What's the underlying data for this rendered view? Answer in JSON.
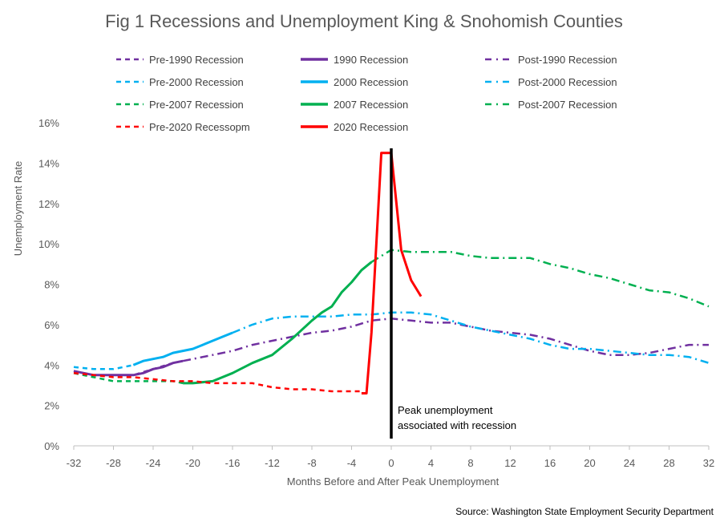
{
  "chart_data": {
    "type": "line",
    "title": "Fig 1 Recessions and Unemployment King & Snohomish Counties",
    "xlabel": "Months Before and After Peak Unemployment",
    "ylabel": "Unemployment Rate",
    "xlim": [
      -32,
      32
    ],
    "ylim": [
      0,
      16
    ],
    "x_ticks": [
      "-32",
      "-28",
      "-24",
      "-20",
      "-16",
      "-12",
      "-8",
      "-4",
      "0",
      "4",
      "8",
      "12",
      "16",
      "20",
      "24",
      "28",
      "32"
    ],
    "y_ticks": [
      "0%",
      "2%",
      "4%",
      "6%",
      "8%",
      "10%",
      "12%",
      "14%",
      "16%"
    ],
    "grid": false,
    "legend_position": "top",
    "annotation": {
      "x": 0,
      "lines": [
        "Peak unemployment",
        "associated with recession"
      ]
    },
    "source": "Source: Washington State Employment Security Department",
    "series": [
      {
        "name": "Pre-1990 Recession",
        "color": "#7030A0",
        "style": "dash",
        "x": [
          -32,
          -30,
          -28,
          -26,
          -24,
          -22
        ],
        "y": [
          3.7,
          3.5,
          3.5,
          3.5,
          3.8,
          4.1
        ]
      },
      {
        "name": "1990 Recession",
        "color": "#7030A0",
        "style": "solid",
        "x": [
          -32,
          -30,
          -28,
          -26,
          -25,
          -24,
          -23,
          -22,
          -21
        ],
        "y": [
          3.7,
          3.5,
          3.5,
          3.5,
          3.6,
          3.8,
          3.9,
          4.1,
          4.2
        ]
      },
      {
        "name": "Post-1990 Recession",
        "color": "#7030A0",
        "style": "dashdot",
        "x": [
          -21,
          -18,
          -16,
          -14,
          -12,
          -10,
          -8,
          -6,
          -4,
          -2,
          0,
          2,
          4,
          6,
          8,
          10,
          12,
          14,
          16,
          18,
          20,
          22,
          24,
          26,
          28,
          30,
          32
        ],
        "y": [
          4.2,
          4.5,
          4.7,
          5.0,
          5.2,
          5.4,
          5.6,
          5.7,
          5.9,
          6.2,
          6.3,
          6.2,
          6.1,
          6.1,
          5.9,
          5.7,
          5.6,
          5.5,
          5.3,
          5.0,
          4.7,
          4.5,
          4.5,
          4.6,
          4.8,
          5.0,
          5.0
        ]
      },
      {
        "name": "Pre-2000 Recession",
        "color": "#00B0F0",
        "style": "dash",
        "x": [
          -32,
          -30,
          -28,
          -27,
          -26
        ],
        "y": [
          3.9,
          3.8,
          3.8,
          3.9,
          4.0
        ]
      },
      {
        "name": "2000 Recession",
        "color": "#00B0F0",
        "style": "solid",
        "x": [
          -26,
          -25,
          -24,
          -23,
          -22,
          -21,
          -20,
          -19,
          -18,
          -17,
          -16
        ],
        "y": [
          4.0,
          4.2,
          4.3,
          4.4,
          4.6,
          4.7,
          4.8,
          5.0,
          5.2,
          5.4,
          5.6
        ]
      },
      {
        "name": "Post-2000 Recession",
        "color": "#00B0F0",
        "style": "dashdot",
        "x": [
          -16,
          -14,
          -12,
          -10,
          -8,
          -6,
          -4,
          -2,
          0,
          2,
          4,
          6,
          8,
          10,
          12,
          14,
          16,
          18,
          20,
          22,
          24,
          26,
          28,
          30,
          32
        ],
        "y": [
          5.6,
          6.0,
          6.3,
          6.4,
          6.4,
          6.4,
          6.5,
          6.5,
          6.6,
          6.6,
          6.5,
          6.2,
          5.9,
          5.7,
          5.5,
          5.3,
          5.0,
          4.8,
          4.8,
          4.7,
          4.6,
          4.5,
          4.5,
          4.4,
          4.1
        ]
      },
      {
        "name": "Pre-2007 Recession",
        "color": "#00B050",
        "style": "dash",
        "x": [
          -32,
          -30,
          -28,
          -26,
          -24,
          -22,
          -21
        ],
        "y": [
          3.6,
          3.4,
          3.2,
          3.2,
          3.2,
          3.2,
          3.1
        ]
      },
      {
        "name": "2007 Recession",
        "color": "#00B050",
        "style": "solid",
        "x": [
          -21,
          -20,
          -18,
          -16,
          -14,
          -12,
          -10,
          -8,
          -7,
          -6,
          -5,
          -4,
          -3,
          -2
        ],
        "y": [
          3.1,
          3.1,
          3.2,
          3.6,
          4.1,
          4.5,
          5.3,
          6.2,
          6.6,
          6.9,
          7.6,
          8.1,
          8.7,
          9.1
        ]
      },
      {
        "name": "Post-2007 Recession",
        "color": "#00B050",
        "style": "dashdot",
        "x": [
          -2,
          0,
          2,
          4,
          6,
          8,
          10,
          12,
          14,
          16,
          18,
          20,
          22,
          24,
          26,
          28,
          30,
          32
        ],
        "y": [
          9.1,
          9.7,
          9.6,
          9.6,
          9.6,
          9.4,
          9.3,
          9.3,
          9.3,
          9.0,
          8.8,
          8.5,
          8.3,
          8.0,
          7.7,
          7.6,
          7.3,
          6.9
        ]
      },
      {
        "name": "Pre-2020 Recessopm",
        "color": "#FF0000",
        "style": "dash",
        "x": [
          -32,
          -30,
          -28,
          -26,
          -24,
          -22,
          -20,
          -18,
          -16,
          -14,
          -12,
          -10,
          -8,
          -6,
          -4,
          -3
        ],
        "y": [
          3.6,
          3.5,
          3.4,
          3.4,
          3.3,
          3.2,
          3.2,
          3.1,
          3.1,
          3.1,
          2.9,
          2.8,
          2.8,
          2.7,
          2.7,
          2.7
        ]
      },
      {
        "name": "2020 Recession",
        "color": "#FF0000",
        "style": "solid",
        "x": [
          -3,
          -2.5,
          -2,
          -1.5,
          -1,
          0,
          1,
          2,
          3
        ],
        "y": [
          2.6,
          2.6,
          5.6,
          10.0,
          14.5,
          14.5,
          9.7,
          8.2,
          7.4
        ]
      }
    ]
  }
}
